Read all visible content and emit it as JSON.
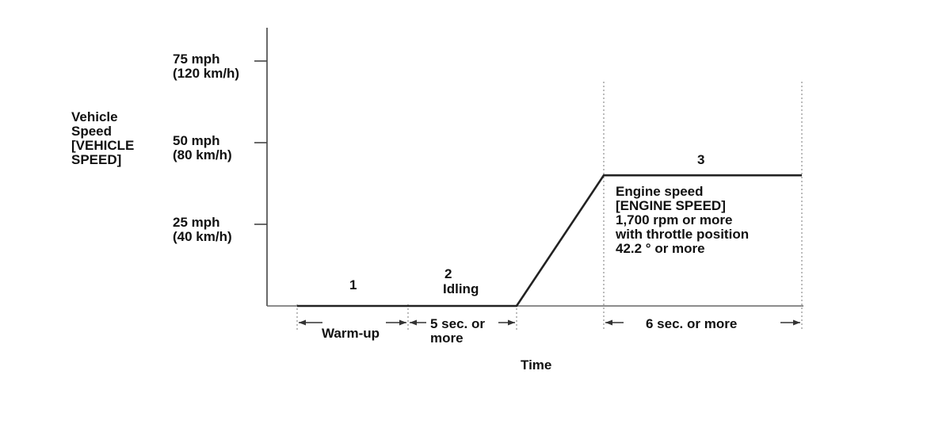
{
  "chart_data": {
    "type": "line",
    "title": "",
    "ylabel": "Vehicle\nSpeed\n[VEHICLE\nSPEED]",
    "xlabel": "Time",
    "yunit": "mph",
    "ylim": [
      0,
      78
    ],
    "yticks": [
      {
        "value": 25,
        "label": "25 mph\n(40 km/h)"
      },
      {
        "value": 50,
        "label": "50 mph\n(80 km/h)"
      },
      {
        "value": 75,
        "label": "75 mph\n(120 km/h)"
      }
    ],
    "grid": false,
    "series": [
      {
        "x": [
          "start",
          "warm-up end",
          "idling end",
          "accel end",
          "end"
        ],
        "y": [
          0,
          0,
          0,
          40,
          40
        ]
      }
    ],
    "phases": [
      {
        "number": "1",
        "name": ""
      },
      {
        "number": "2",
        "name": "Idling"
      },
      {
        "number": "3",
        "name": ""
      }
    ],
    "durations": [
      {
        "label": "Warm-up"
      },
      {
        "label": "5 sec. or\nmore"
      },
      {
        "label": "6 sec. or more"
      }
    ],
    "annotation": "Engine speed\n[ENGINE SPEED]\n1,700 rpm or more\nwith throttle position\n42.2 ° or more"
  }
}
